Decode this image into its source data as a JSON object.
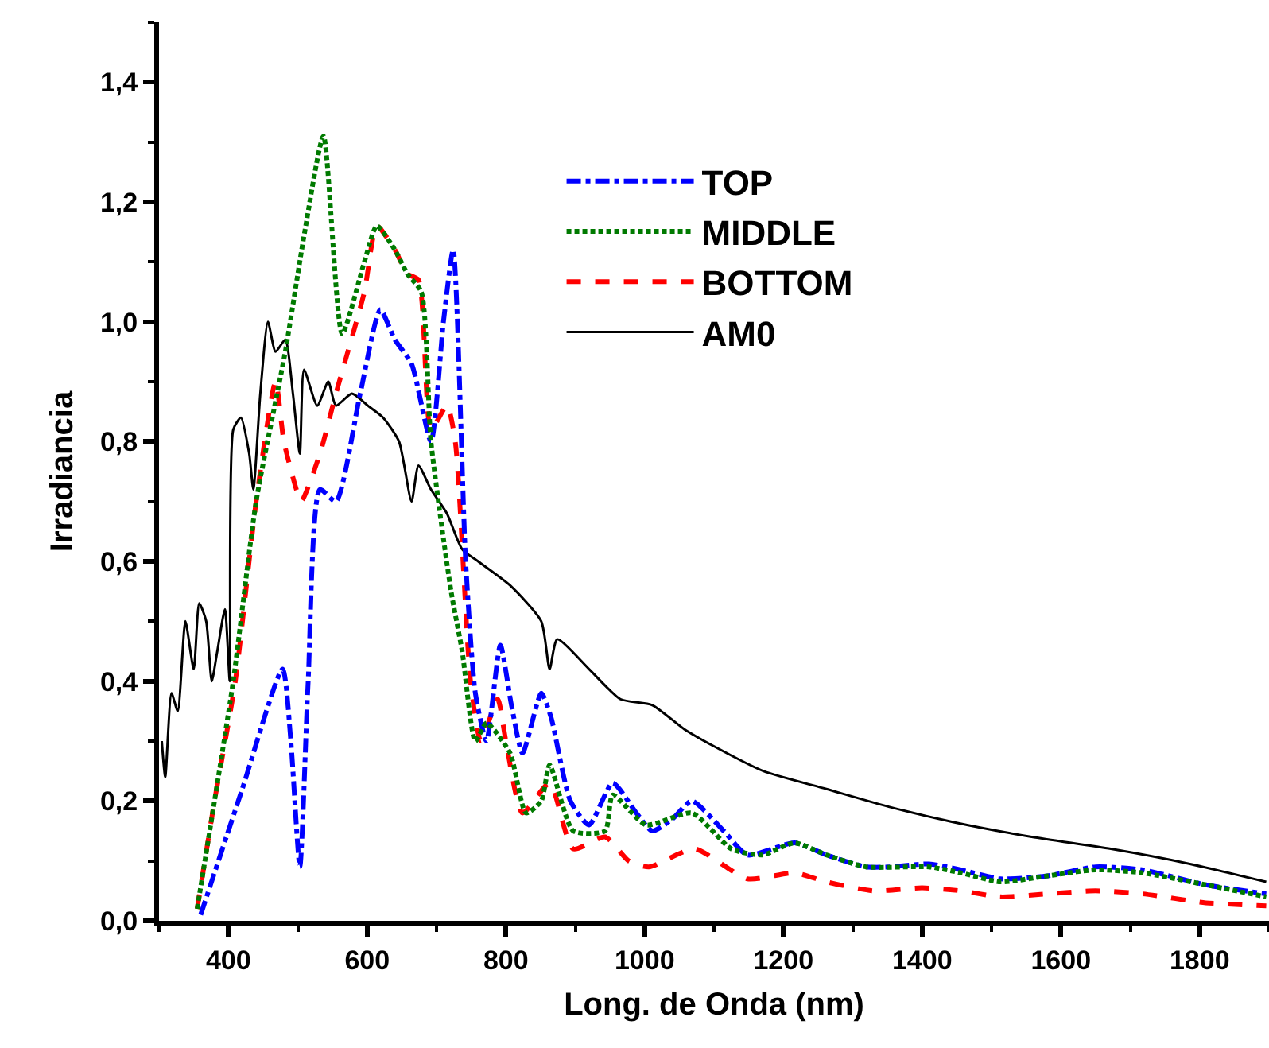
{
  "chart_data": {
    "type": "line",
    "xlabel": "Long. de Onda (nm)",
    "ylabel": "Irradiancia",
    "xlim": [
      300,
      1900
    ],
    "xticks": [
      400,
      600,
      800,
      1000,
      1200,
      1400,
      1600,
      1800
    ],
    "ylim": [
      0,
      1.5
    ],
    "yticks": [
      {
        "value": 0,
        "label": "0,0"
      },
      {
        "value": 0.2,
        "label": "0,2"
      },
      {
        "value": 0.4,
        "label": "0,4"
      },
      {
        "value": 0.6,
        "label": "0,6"
      },
      {
        "value": 0.8,
        "label": "0,8"
      },
      {
        "value": 1.0,
        "label": "1,0"
      },
      {
        "value": 1.2,
        "label": "1,2"
      },
      {
        "value": 1.4,
        "label": "1,4"
      }
    ],
    "grid": false,
    "legend": "top right",
    "marker": "none",
    "series": [
      {
        "name": "TOP",
        "color": "#0000ff",
        "line_style": "dashdot",
        "x": [
          360,
          420,
          478,
          490,
          503,
          515,
          532,
          555,
          590,
          619,
          640,
          664,
          692,
          710,
          724,
          742,
          756,
          772,
          792,
          808,
          824,
          851,
          865,
          893,
          920,
          954,
          988,
          1011,
          1040,
          1068,
          1114,
          1148,
          1216,
          1262,
          1319,
          1353,
          1410,
          1456,
          1513,
          1581,
          1650,
          1718,
          1809,
          1896
        ],
        "values": [
          0.01,
          0.22,
          0.42,
          0.3,
          0.09,
          0.4,
          0.72,
          0.7,
          0.88,
          1.02,
          0.97,
          0.93,
          0.8,
          1.0,
          1.12,
          0.6,
          0.38,
          0.3,
          0.46,
          0.36,
          0.28,
          0.38,
          0.34,
          0.2,
          0.16,
          0.23,
          0.18,
          0.15,
          0.17,
          0.2,
          0.15,
          0.11,
          0.13,
          0.11,
          0.09,
          0.09,
          0.095,
          0.085,
          0.07,
          0.075,
          0.09,
          0.085,
          0.06,
          0.045
        ]
      },
      {
        "name": "MIDDLE",
        "color": "#007a00",
        "line_style": "dotted",
        "x": [
          355,
          380,
          407,
          440,
          482,
          510,
          537,
          564,
          596,
          614,
          640,
          658,
          678,
          692,
          721,
          737,
          756,
          772,
          806,
          829,
          851,
          863,
          897,
          943,
          954,
          1002,
          1068,
          1125,
          1170,
          1216,
          1262,
          1319,
          1410,
          1456,
          1513,
          1581,
          1650,
          1718,
          1809,
          1896
        ],
        "values": [
          0.02,
          0.2,
          0.4,
          0.7,
          0.95,
          1.15,
          1.31,
          0.98,
          1.1,
          1.16,
          1.12,
          1.08,
          1.05,
          0.8,
          0.55,
          0.45,
          0.3,
          0.33,
          0.28,
          0.18,
          0.2,
          0.26,
          0.15,
          0.15,
          0.21,
          0.16,
          0.18,
          0.12,
          0.11,
          0.13,
          0.11,
          0.09,
          0.09,
          0.08,
          0.065,
          0.075,
          0.085,
          0.08,
          0.06,
          0.04
        ]
      },
      {
        "name": "BOTTOM",
        "color": "#ff0000",
        "line_style": "dashed",
        "x": [
          355,
          380,
          410,
          440,
          468,
          480,
          498,
          505,
          532,
          555,
          596,
          614,
          640,
          658,
          674,
          692,
          715,
          727,
          749,
          764,
          788,
          800,
          824,
          863,
          897,
          943,
          977,
          1006,
          1072,
          1148,
          1216,
          1262,
          1330,
          1400,
          1456,
          1513,
          1581,
          1650,
          1718,
          1809,
          1896
        ],
        "values": [
          0.02,
          0.2,
          0.4,
          0.7,
          0.9,
          0.8,
          0.72,
          0.7,
          0.78,
          0.88,
          1.05,
          1.16,
          1.12,
          1.08,
          1.07,
          0.82,
          0.86,
          0.8,
          0.4,
          0.3,
          0.37,
          0.3,
          0.18,
          0.23,
          0.12,
          0.14,
          0.1,
          0.09,
          0.12,
          0.07,
          0.08,
          0.065,
          0.05,
          0.055,
          0.05,
          0.04,
          0.045,
          0.05,
          0.045,
          0.03,
          0.025
        ]
      },
      {
        "name": "AM0",
        "color": "#000000",
        "line_style": "solid",
        "x": [
          304,
          309,
          318,
          327,
          338,
          350,
          358,
          368,
          376,
          384,
          395,
          402,
          407,
          418,
          430,
          436,
          446,
          457,
          468,
          482,
          493,
          503,
          509,
          528,
          544,
          555,
          578,
          601,
          623,
          646,
          664,
          674,
          692,
          715,
          737,
          760,
          806,
          851,
          863,
          874,
          920,
          965,
          1011,
          1057,
          1102,
          1171,
          1262,
          1353,
          1444,
          1558,
          1672,
          1786,
          1896
        ],
        "values": [
          0.3,
          0.24,
          0.38,
          0.35,
          0.5,
          0.42,
          0.53,
          0.5,
          0.4,
          0.45,
          0.52,
          0.4,
          0.82,
          0.84,
          0.78,
          0.72,
          0.88,
          1.0,
          0.95,
          0.97,
          0.88,
          0.78,
          0.92,
          0.86,
          0.9,
          0.86,
          0.88,
          0.86,
          0.84,
          0.8,
          0.7,
          0.76,
          0.72,
          0.68,
          0.62,
          0.6,
          0.56,
          0.5,
          0.42,
          0.47,
          0.42,
          0.37,
          0.36,
          0.32,
          0.29,
          0.25,
          0.22,
          0.19,
          0.165,
          0.14,
          0.12,
          0.095,
          0.065
        ]
      }
    ]
  }
}
